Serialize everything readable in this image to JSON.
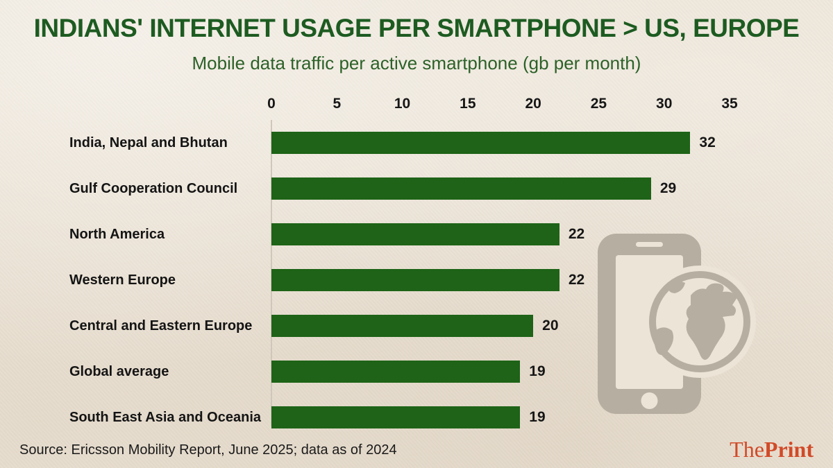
{
  "title": "INDIANS' INTERNET USAGE PER SMARTPHONE > US, EUROPE",
  "subtitle": "Mobile data traffic per active smartphone (gb per month)",
  "source": "Source: Ericsson Mobility Report, June 2025; data as of 2024",
  "logo": {
    "the": "The",
    "print": "Print"
  },
  "colors": {
    "background": "#ece4d7",
    "bar": "#1e6317",
    "title_green": "#1d5b21",
    "subtitle_green": "#2c6128",
    "text": "#161616",
    "icon_gray": "#b6aea1",
    "logo_red": "#d14a28"
  },
  "icons": [
    "smartphone-icon",
    "globe-icon"
  ],
  "chart_data": {
    "type": "bar",
    "orientation": "horizontal",
    "title": "INDIANS' INTERNET USAGE PER SMARTPHONE > US, EUROPE",
    "subtitle": "Mobile data traffic per active smartphone (gb per month)",
    "categories": [
      "India, Nepal and Bhutan",
      "Gulf Cooperation Council",
      "North America",
      "Western Europe",
      "Central and Eastern Europe",
      "Global average",
      "South East Asia and Oceania"
    ],
    "values": [
      32,
      29,
      22,
      22,
      20,
      19,
      19
    ],
    "xticks": [
      0,
      5,
      10,
      15,
      20,
      25,
      30,
      35
    ],
    "xlim": [
      0,
      35
    ],
    "xlabel": "gb per month",
    "ylabel": "",
    "grid": false,
    "legend": false,
    "bar_color": "#1e6317",
    "value_labels": true
  }
}
